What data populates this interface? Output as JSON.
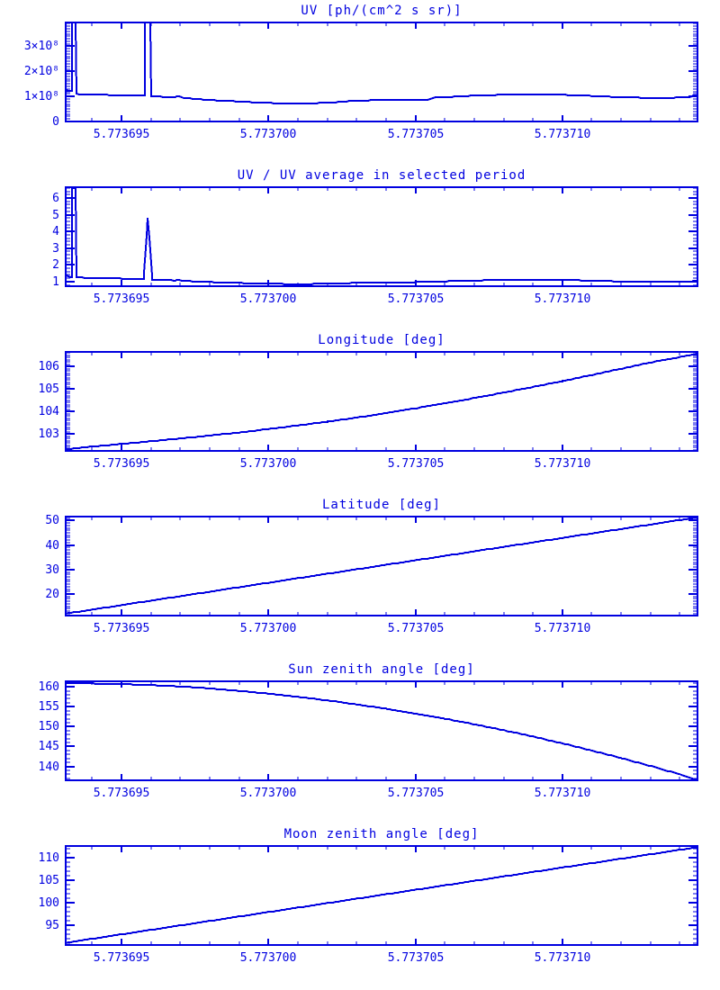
{
  "page": {
    "background": "#ffffff",
    "accent": "#0000e0"
  },
  "chart_data": [
    {
      "type": "line",
      "title": "UV [ph/(cm^2 s sr)]",
      "xlabel": "",
      "ylabel": "",
      "xlim": [
        5.7736931,
        5.7737146
      ],
      "ylim": [
        0,
        395000000.0
      ],
      "x_base": 5.77369,
      "x_ticks": {
        "values": [
          5.773695,
          5.7737,
          5.773705,
          5.77371
        ],
        "labels": [
          "5.773695",
          "5.773700",
          "5.773705",
          "5.773710"
        ]
      },
      "x_minor": 1e-06,
      "y_ticks": {
        "values": [
          0,
          100000000.0,
          200000000.0,
          300000000.0
        ],
        "labels": [
          "0",
          "1×10⁸",
          "2×10⁸",
          "3×10⁸"
        ]
      },
      "y_minor": 10000000.0,
      "grid": false,
      "legend": false,
      "series": [
        {
          "name": "UV",
          "x_offset_micro": [
            3.1,
            3.2,
            3.3,
            3.31,
            3.45,
            3.46,
            3.8,
            4.5,
            5.2,
            5.8,
            5.81,
            5.99,
            6.0,
            6.6,
            6.85,
            6.9,
            7.1,
            7.5,
            8.0,
            8.6,
            9.3,
            10.0,
            10.7,
            11.3,
            11.8,
            12.2,
            12.6,
            13.1,
            13.6,
            14.0,
            14.8,
            15.5,
            15.6,
            16.2,
            16.8,
            17.5,
            18.3,
            19.0,
            19.7,
            20.4,
            21.0,
            21.6,
            22.3,
            23.0,
            23.8,
            24.3,
            24.45,
            24.6
          ],
          "y": [
            125000000.0,
            122000000.0,
            122000000.0,
            395000000.0,
            395000000.0,
            110000000.0,
            108000000.0,
            106000000.0,
            104000000.0,
            103000000.0,
            395000000.0,
            395000000.0,
            100000000.0,
            98000000.0,
            98000000.0,
            102000000.0,
            95000000.0,
            90000000.0,
            86000000.0,
            82000000.0,
            78000000.0,
            74000000.0,
            72000000.0,
            72000000.0,
            74000000.0,
            76000000.0,
            80000000.0,
            83000000.0,
            85000000.0,
            86000000.0,
            87000000.0,
            88000000.0,
            95000000.0,
            98000000.0,
            102000000.0,
            105000000.0,
            108000000.0,
            109000000.0,
            108000000.0,
            105000000.0,
            102000000.0,
            99000000.0,
            96000000.0,
            94000000.0,
            95000000.0,
            97000000.0,
            103000000.0,
            103000000.0
          ]
        }
      ]
    },
    {
      "type": "line",
      "title": "UV / UV average in selected period",
      "xlabel": "",
      "ylabel": "",
      "xlim": [
        5.7736931,
        5.7737146
      ],
      "ylim": [
        0.72,
        6.65
      ],
      "x_base": 5.77369,
      "x_ticks": {
        "values": [
          5.773695,
          5.7737,
          5.773705,
          5.77371
        ],
        "labels": [
          "5.773695",
          "5.773700",
          "5.773705",
          "5.773710"
        ]
      },
      "x_minor": 1e-06,
      "y_ticks": {
        "values": [
          1,
          2,
          3,
          4,
          5,
          6
        ],
        "labels": [
          "1",
          "2",
          "3",
          "4",
          "5",
          "6"
        ]
      },
      "y_minor": 0.2,
      "grid": false,
      "legend": false,
      "series": [
        {
          "name": "UV ratio",
          "x_offset_micro": [
            3.1,
            3.2,
            3.3,
            3.31,
            3.45,
            3.46,
            3.8,
            4.5,
            5.2,
            5.75,
            5.9,
            6.05,
            6.6,
            6.85,
            6.9,
            7.1,
            7.5,
            8.0,
            8.6,
            9.3,
            10.0,
            10.7,
            11.3,
            11.8,
            12.2,
            12.6,
            13.1,
            13.6,
            14.0,
            14.8,
            15.5,
            15.6,
            16.2,
            16.8,
            17.5,
            18.3,
            19.0,
            19.7,
            20.4,
            21.0,
            21.6,
            22.3,
            23.0,
            23.8,
            24.3,
            24.45,
            24.6
          ],
          "y": [
            1.35,
            1.3,
            1.28,
            6.6,
            6.6,
            1.25,
            1.22,
            1.2,
            1.17,
            1.15,
            4.8,
            1.1,
            1.08,
            1.06,
            1.1,
            1.05,
            1.0,
            0.97,
            0.93,
            0.9,
            0.87,
            0.85,
            0.85,
            0.86,
            0.88,
            0.9,
            0.92,
            0.94,
            0.95,
            0.96,
            0.97,
            1.0,
            1.02,
            1.05,
            1.08,
            1.1,
            1.11,
            1.1,
            1.08,
            1.05,
            1.02,
            1.0,
            0.98,
            0.99,
            1.0,
            1.02,
            1.02
          ]
        }
      ]
    },
    {
      "type": "line",
      "title": "Longitude [deg]",
      "xlabel": "",
      "ylabel": "",
      "xlim": [
        5.7736931,
        5.7737146
      ],
      "ylim": [
        102.25,
        106.65
      ],
      "x_base": 5.77369,
      "x_ticks": {
        "values": [
          5.773695,
          5.7737,
          5.773705,
          5.77371
        ],
        "labels": [
          "5.773695",
          "5.773700",
          "5.773705",
          "5.773710"
        ]
      },
      "x_minor": 1e-06,
      "y_ticks": {
        "values": [
          103,
          104,
          105,
          106
        ],
        "labels": [
          "103",
          "104",
          "105",
          "106"
        ]
      },
      "y_minor": 0.1,
      "grid": false,
      "legend": false,
      "series": [
        {
          "name": "Longitude",
          "x_offset_micro": [
            3.1,
            4,
            5,
            6,
            7,
            8,
            9,
            10,
            11,
            12,
            13,
            14,
            15,
            16,
            17,
            18,
            19,
            20,
            21,
            22,
            23,
            24,
            24.6
          ],
          "y": [
            102.32,
            102.44,
            102.56,
            102.68,
            102.8,
            102.93,
            103.07,
            103.22,
            103.38,
            103.55,
            103.73,
            103.93,
            104.14,
            104.36,
            104.6,
            104.84,
            105.09,
            105.35,
            105.62,
            105.9,
            106.18,
            106.42,
            106.57
          ]
        }
      ]
    },
    {
      "type": "line",
      "title": "Latitude [deg]",
      "xlabel": "",
      "ylabel": "",
      "xlim": [
        5.7736931,
        5.7737146
      ],
      "ylim": [
        11.2,
        51.6
      ],
      "x_base": 5.77369,
      "x_ticks": {
        "values": [
          5.773695,
          5.7737,
          5.773705,
          5.77371
        ],
        "labels": [
          "5.773695",
          "5.773700",
          "5.773705",
          "5.773710"
        ]
      },
      "x_minor": 1e-06,
      "y_ticks": {
        "values": [
          20,
          30,
          40,
          50
        ],
        "labels": [
          "20",
          "30",
          "40",
          "50"
        ]
      },
      "y_minor": 1,
      "grid": false,
      "legend": false,
      "series": [
        {
          "name": "Latitude",
          "x_offset_micro": [
            3.1,
            24.6
          ],
          "y": [
            12.0,
            51.3
          ]
        }
      ]
    },
    {
      "type": "line",
      "title": "Sun zenith angle [deg]",
      "xlabel": "",
      "ylabel": "",
      "xlim": [
        5.7736931,
        5.7737146
      ],
      "ylim": [
        136.5,
        161.4
      ],
      "x_base": 5.77369,
      "x_ticks": {
        "values": [
          5.773695,
          5.7737,
          5.773705,
          5.77371
        ],
        "labels": [
          "5.773695",
          "5.773700",
          "5.773705",
          "5.773710"
        ]
      },
      "x_minor": 1e-06,
      "y_ticks": {
        "values": [
          140,
          145,
          150,
          155,
          160
        ],
        "labels": [
          "140",
          "145",
          "150",
          "155",
          "160"
        ]
      },
      "y_minor": 1,
      "grid": false,
      "legend": false,
      "series": [
        {
          "name": "Sun zenith angle",
          "x_offset_micro": [
            3.1,
            4,
            5,
            6,
            7,
            8,
            9,
            10,
            11,
            12,
            13,
            14,
            15,
            16,
            17,
            18,
            19,
            20,
            21,
            22,
            23,
            24,
            24.6
          ],
          "y": [
            160.9,
            160.85,
            160.7,
            160.45,
            160.1,
            159.6,
            159.0,
            158.3,
            157.5,
            156.6,
            155.6,
            154.5,
            153.3,
            152.0,
            150.6,
            149.1,
            147.5,
            145.8,
            144.0,
            142.1,
            140.1,
            138.0,
            136.6
          ]
        }
      ]
    },
    {
      "type": "line",
      "title": "Moon zenith angle [deg]",
      "xlabel": "",
      "ylabel": "",
      "xlim": [
        5.7736931,
        5.7737146
      ],
      "ylim": [
        90.5,
        112.5
      ],
      "x_base": 5.77369,
      "x_ticks": {
        "values": [
          5.773695,
          5.7737,
          5.773705,
          5.77371
        ],
        "labels": [
          "5.773695",
          "5.773700",
          "5.773705",
          "5.773710"
        ]
      },
      "x_minor": 1e-06,
      "y_ticks": {
        "values": [
          95,
          100,
          105,
          110
        ],
        "labels": [
          "95",
          "100",
          "105",
          "110"
        ]
      },
      "y_minor": 1,
      "grid": false,
      "legend": false,
      "series": [
        {
          "name": "Moon zenith angle",
          "x_offset_micro": [
            3.1,
            24.6
          ],
          "y": [
            91.0,
            112.25
          ]
        }
      ]
    }
  ]
}
